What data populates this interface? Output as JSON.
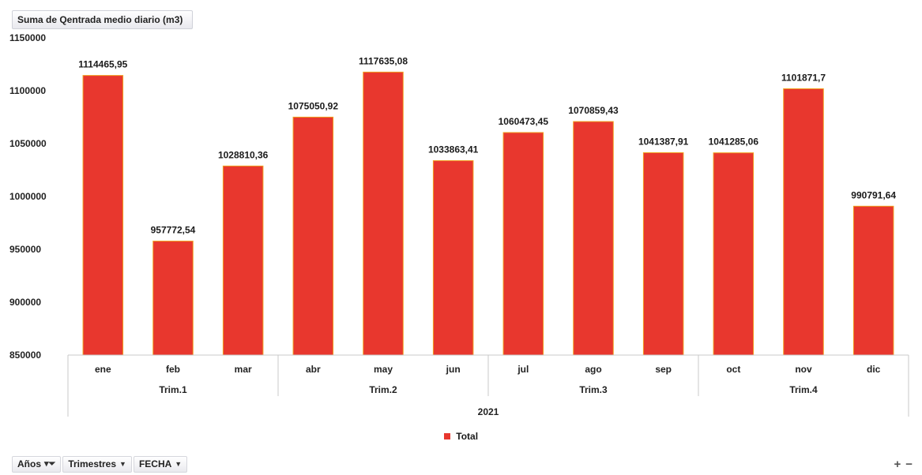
{
  "field_button": {
    "label": "Suma de Qentrada medio diario (m3)"
  },
  "chart_data": {
    "type": "bar",
    "title": "",
    "categories": [
      "ene",
      "feb",
      "mar",
      "abr",
      "may",
      "jun",
      "jul",
      "ago",
      "sep",
      "oct",
      "nov",
      "dic"
    ],
    "groups": [
      {
        "label": "Trim.1",
        "categories": [
          "ene",
          "feb",
          "mar"
        ]
      },
      {
        "label": "Trim.2",
        "categories": [
          "abr",
          "may",
          "jun"
        ]
      },
      {
        "label": "Trim.3",
        "categories": [
          "jul",
          "ago",
          "sep"
        ]
      },
      {
        "label": "Trim.4",
        "categories": [
          "oct",
          "nov",
          "dic"
        ]
      }
    ],
    "year_label": "2021",
    "series": [
      {
        "name": "Total",
        "values": [
          1114465.95,
          957772.54,
          1028810.36,
          1075050.92,
          1117635.08,
          1033863.41,
          1060473.45,
          1070859.43,
          1041387.91,
          1041285.06,
          1101871.7,
          990791.64
        ],
        "labels": [
          "1114465,95",
          "957772,54",
          "1028810,36",
          "1075050,92",
          "1117635,08",
          "1033863,41",
          "1060473,45",
          "1070859,43",
          "1041387,91",
          "1041285,06",
          "1101871,7",
          "990791,64"
        ]
      }
    ],
    "ylim": [
      850000,
      1150000
    ],
    "yticks": [
      850000,
      900000,
      950000,
      1000000,
      1050000,
      1100000,
      1150000
    ],
    "ytick_labels": [
      "850000",
      "900000",
      "950000",
      "1000000",
      "1050000",
      "1100000",
      "1150000"
    ],
    "legend_position": "bottom",
    "grid": false,
    "colors": {
      "bar": "#e8372e",
      "bar_edge": "#f0a020",
      "axis": "#c8c8c8"
    }
  },
  "axis_buttons": [
    {
      "label": "Años",
      "icon": "filter-icon"
    },
    {
      "label": "Trimestres",
      "icon": "dropdown-arrow-icon"
    },
    {
      "label": "FECHA",
      "icon": "dropdown-arrow-icon"
    }
  ],
  "zoom": {
    "plus": "+",
    "minus": "−"
  }
}
